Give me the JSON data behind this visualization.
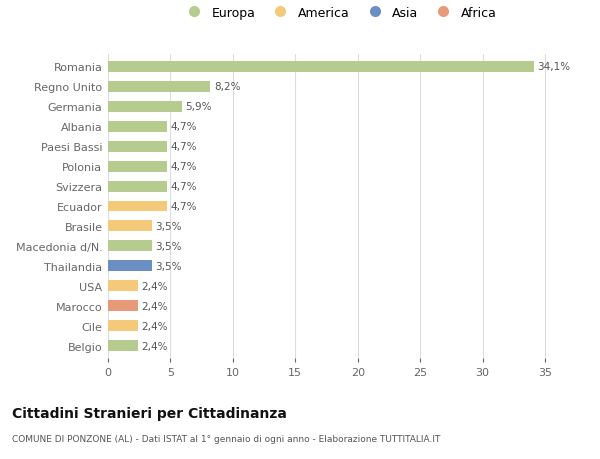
{
  "countries": [
    "Romania",
    "Regno Unito",
    "Germania",
    "Albania",
    "Paesi Bassi",
    "Polonia",
    "Svizzera",
    "Ecuador",
    "Brasile",
    "Macedonia d/N.",
    "Thailandia",
    "USA",
    "Marocco",
    "Cile",
    "Belgio"
  ],
  "values": [
    34.1,
    8.2,
    5.9,
    4.7,
    4.7,
    4.7,
    4.7,
    4.7,
    3.5,
    3.5,
    3.5,
    2.4,
    2.4,
    2.4,
    2.4
  ],
  "continents": [
    "Europa",
    "Europa",
    "Europa",
    "Europa",
    "Europa",
    "Europa",
    "Europa",
    "America",
    "America",
    "Europa",
    "Asia",
    "America",
    "Africa",
    "America",
    "Europa"
  ],
  "continent_colors": {
    "Europa": "#b5cc8e",
    "America": "#f5c97a",
    "Asia": "#6b8fc2",
    "Africa": "#e8997a"
  },
  "legend_order": [
    "Europa",
    "America",
    "Asia",
    "Africa"
  ],
  "title": "Cittadini Stranieri per Cittadinanza",
  "subtitle": "COMUNE DI PONZONE (AL) - Dati ISTAT al 1° gennaio di ogni anno - Elaborazione TUTTITALIA.IT",
  "xlim": [
    0,
    37
  ],
  "xticks": [
    0,
    5,
    10,
    15,
    20,
    25,
    30,
    35
  ],
  "bar_height": 0.55,
  "background_color": "#ffffff",
  "grid_color": "#dddddd",
  "label_color": "#666666",
  "value_label_color": "#555555"
}
